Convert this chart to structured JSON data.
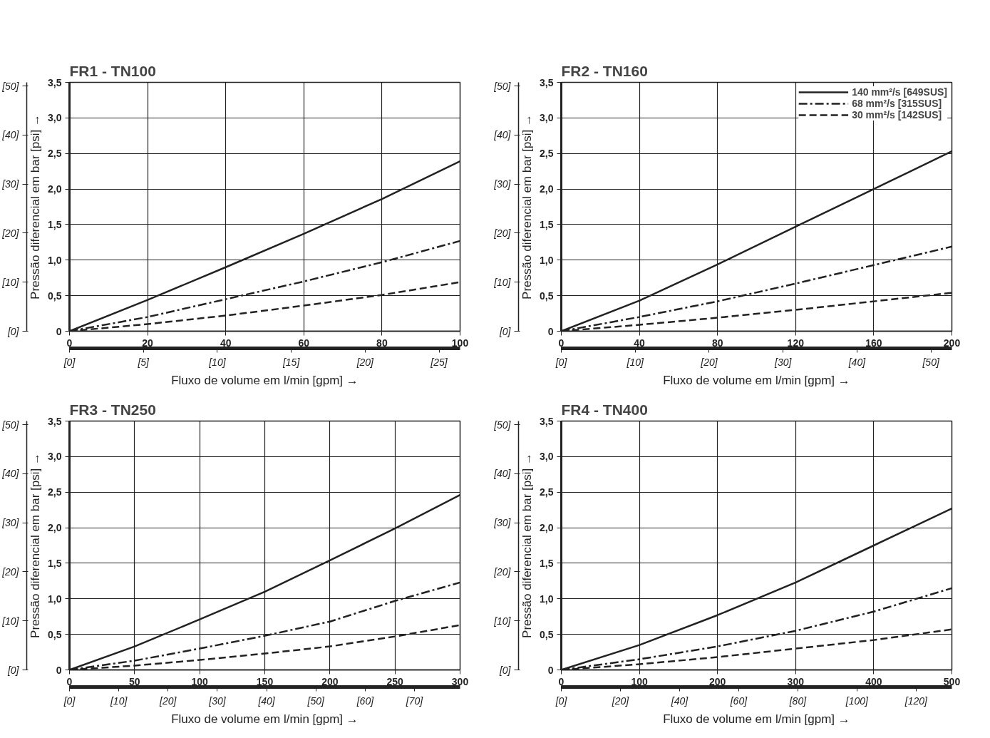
{
  "chart_data": [
    {
      "type": "line",
      "title": "FR1 - TN100",
      "xlabel": "Fluxo de volume em l/min [gpm] →",
      "ylabel": "Pressão diferencial em bar [psi] →",
      "grid": true,
      "x": [
        0,
        20,
        40,
        60,
        80,
        100
      ],
      "xlim": [
        0,
        100
      ],
      "xticks": [
        0,
        20,
        40,
        60,
        80,
        100
      ],
      "ylim": [
        0,
        3.5
      ],
      "yticks": [
        0,
        {
          "value": 0.5,
          "label": "0,5"
        },
        {
          "value": 1,
          "label": "1,0"
        },
        {
          "value": 1.5,
          "label": "1,5"
        },
        {
          "value": 2,
          "label": "2,0"
        },
        {
          "value": 2.5,
          "label": "2,5"
        },
        {
          "value": 3,
          "label": "3,0"
        },
        {
          "value": 3.5,
          "label": "3,5"
        }
      ],
      "y2lim": [
        0,
        50.76
      ],
      "y2ticks": [
        {
          "value": 0,
          "label": "[0]"
        },
        {
          "value": 10,
          "label": "[10]"
        },
        {
          "value": 20,
          "label": "[20]"
        },
        {
          "value": 30,
          "label": "[30]"
        },
        {
          "value": 40,
          "label": "[40]"
        },
        {
          "value": 50,
          "label": "[50]"
        }
      ],
      "x2lim": [
        0,
        26.42
      ],
      "x2ticks": [
        {
          "value": 0,
          "label": "[0]"
        },
        {
          "value": 5,
          "label": "[5]"
        },
        {
          "value": 10,
          "label": "[10]"
        },
        {
          "value": 15,
          "label": "[15]"
        },
        {
          "value": 20,
          "label": "[20]"
        },
        {
          "value": 25,
          "label": "[25]"
        }
      ],
      "series": [
        {
          "color": "#222222",
          "line_style": "solid",
          "values": [
            0,
            0.44,
            0.9,
            1.37,
            1.86,
            2.39
          ]
        },
        {
          "color": "#222222",
          "line_style": "dashdot",
          "values": [
            0,
            0.2,
            0.45,
            0.7,
            0.97,
            1.27
          ]
        },
        {
          "color": "#222222",
          "line_style": "dashed",
          "values": [
            0,
            0.1,
            0.22,
            0.36,
            0.51,
            0.69
          ]
        }
      ]
    },
    {
      "type": "line",
      "title": "FR2 - TN160",
      "xlabel": "Fluxo de volume em l/min [gpm] →",
      "ylabel": "Pressão diferencial em bar [psi] →",
      "grid": true,
      "legend": "top right",
      "x": [
        0,
        40,
        80,
        120,
        160,
        200
      ],
      "xlim": [
        0,
        200
      ],
      "xticks": [
        0,
        40,
        80,
        120,
        160,
        200
      ],
      "ylim": [
        0,
        3.5
      ],
      "yticks": [
        0,
        {
          "value": 0.5,
          "label": "0,5"
        },
        {
          "value": 1,
          "label": "1,0"
        },
        {
          "value": 1.5,
          "label": "1,5"
        },
        {
          "value": 2,
          "label": "2,0"
        },
        {
          "value": 2.5,
          "label": "2,5"
        },
        {
          "value": 3,
          "label": "3,0"
        },
        {
          "value": 3.5,
          "label": "3,5"
        }
      ],
      "y2lim": [
        0,
        50.76
      ],
      "y2ticks": [
        {
          "value": 0,
          "label": "[0]"
        },
        {
          "value": 10,
          "label": "[10]"
        },
        {
          "value": 20,
          "label": "[20]"
        },
        {
          "value": 30,
          "label": "[30]"
        },
        {
          "value": 40,
          "label": "[40]"
        },
        {
          "value": 50,
          "label": "[50]"
        }
      ],
      "x2lim": [
        0,
        52.83
      ],
      "x2ticks": [
        {
          "value": 0,
          "label": "[0]"
        },
        {
          "value": 10,
          "label": "[10]"
        },
        {
          "value": 20,
          "label": "[20]"
        },
        {
          "value": 30,
          "label": "[30]"
        },
        {
          "value": 40,
          "label": "[40]"
        },
        {
          "value": 50,
          "label": "[50]"
        }
      ],
      "series": [
        {
          "name": "140 mm²/s [649SUS]",
          "color": "#222222",
          "line_style": "solid",
          "values": [
            0,
            0.43,
            0.94,
            1.47,
            2.0,
            2.53
          ]
        },
        {
          "name": "68 mm²/s [315SUS]",
          "color": "#222222",
          "line_style": "dashdot",
          "values": [
            0,
            0.2,
            0.42,
            0.67,
            0.93,
            1.19
          ]
        },
        {
          "name": "30 mm²/s [142SUS]",
          "color": "#222222",
          "line_style": "dashed",
          "values": [
            0,
            0.09,
            0.19,
            0.3,
            0.42,
            0.54
          ]
        }
      ]
    },
    {
      "type": "line",
      "title": "FR3 - TN250",
      "xlabel": "Fluxo de volume em l/min [gpm] →",
      "ylabel": "Pressão diferencial em bar [psi] →",
      "grid": true,
      "x": [
        0,
        50,
        100,
        150,
        200,
        250,
        300
      ],
      "xlim": [
        0,
        300
      ],
      "xticks": [
        0,
        50,
        100,
        150,
        200,
        250,
        300
      ],
      "ylim": [
        0,
        3.5
      ],
      "yticks": [
        0,
        {
          "value": 0.5,
          "label": "0,5"
        },
        {
          "value": 1,
          "label": "1,0"
        },
        {
          "value": 1.5,
          "label": "1,5"
        },
        {
          "value": 2,
          "label": "2,0"
        },
        {
          "value": 2.5,
          "label": "2,5"
        },
        {
          "value": 3,
          "label": "3,0"
        },
        {
          "value": 3.5,
          "label": "3,5"
        }
      ],
      "y2lim": [
        0,
        50.76
      ],
      "y2ticks": [
        {
          "value": 0,
          "label": "[0]"
        },
        {
          "value": 10,
          "label": "[10]"
        },
        {
          "value": 20,
          "label": "[20]"
        },
        {
          "value": 30,
          "label": "[30]"
        },
        {
          "value": 40,
          "label": "[40]"
        },
        {
          "value": 50,
          "label": "[50]"
        }
      ],
      "x2lim": [
        0,
        79.25
      ],
      "x2ticks": [
        {
          "value": 0,
          "label": "[0]"
        },
        {
          "value": 10,
          "label": "[10]"
        },
        {
          "value": 20,
          "label": "[20]"
        },
        {
          "value": 30,
          "label": "[30]"
        },
        {
          "value": 40,
          "label": "[40]"
        },
        {
          "value": 50,
          "label": "[50]"
        },
        {
          "value": 60,
          "label": "[60]"
        },
        {
          "value": 70,
          "label": "[70]"
        }
      ],
      "series": [
        {
          "color": "#222222",
          "line_style": "solid",
          "values": [
            0,
            0.33,
            0.71,
            1.1,
            1.54,
            1.99,
            2.46
          ]
        },
        {
          "color": "#222222",
          "line_style": "dashdot",
          "values": [
            0,
            0.13,
            0.3,
            0.48,
            0.68,
            0.97,
            1.23
          ]
        },
        {
          "color": "#222222",
          "line_style": "dashed",
          "values": [
            0,
            0.06,
            0.14,
            0.23,
            0.33,
            0.47,
            0.63
          ]
        }
      ]
    },
    {
      "type": "line",
      "title": "FR4 - TN400",
      "xlabel": "Fluxo de volume em l/min [gpm] →",
      "ylabel": "Pressão diferencial em bar [psi] →",
      "grid": true,
      "x": [
        0,
        100,
        200,
        300,
        400,
        500
      ],
      "xlim": [
        0,
        500
      ],
      "xticks": [
        0,
        100,
        200,
        300,
        400,
        500
      ],
      "ylim": [
        0,
        3.5
      ],
      "yticks": [
        0,
        {
          "value": 0.5,
          "label": "0,5"
        },
        {
          "value": 1,
          "label": "1,0"
        },
        {
          "value": 1.5,
          "label": "1,5"
        },
        {
          "value": 2,
          "label": "2,0"
        },
        {
          "value": 2.5,
          "label": "2,5"
        },
        {
          "value": 3,
          "label": "3,0"
        },
        {
          "value": 3.5,
          "label": "3,5"
        }
      ],
      "y2lim": [
        0,
        50.76
      ],
      "y2ticks": [
        {
          "value": 0,
          "label": "[0]"
        },
        {
          "value": 10,
          "label": "[10]"
        },
        {
          "value": 20,
          "label": "[20]"
        },
        {
          "value": 30,
          "label": "[30]"
        },
        {
          "value": 40,
          "label": "[40]"
        },
        {
          "value": 50,
          "label": "[50]"
        }
      ],
      "x2lim": [
        0,
        132.09
      ],
      "x2ticks": [
        {
          "value": 0,
          "label": "[0]"
        },
        {
          "value": 20,
          "label": "[20]"
        },
        {
          "value": 40,
          "label": "[40]"
        },
        {
          "value": 60,
          "label": "[60]"
        },
        {
          "value": 80,
          "label": "[80]"
        },
        {
          "value": 100,
          "label": "[100]"
        },
        {
          "value": 120,
          "label": "[120]"
        }
      ],
      "series": [
        {
          "color": "#222222",
          "line_style": "solid",
          "values": [
            0,
            0.35,
            0.77,
            1.23,
            1.75,
            2.27
          ]
        },
        {
          "color": "#222222",
          "line_style": "dashdot",
          "values": [
            0,
            0.15,
            0.33,
            0.55,
            0.82,
            1.15
          ]
        },
        {
          "color": "#222222",
          "line_style": "dashed",
          "values": [
            0,
            0.08,
            0.18,
            0.3,
            0.42,
            0.57
          ]
        }
      ]
    }
  ]
}
